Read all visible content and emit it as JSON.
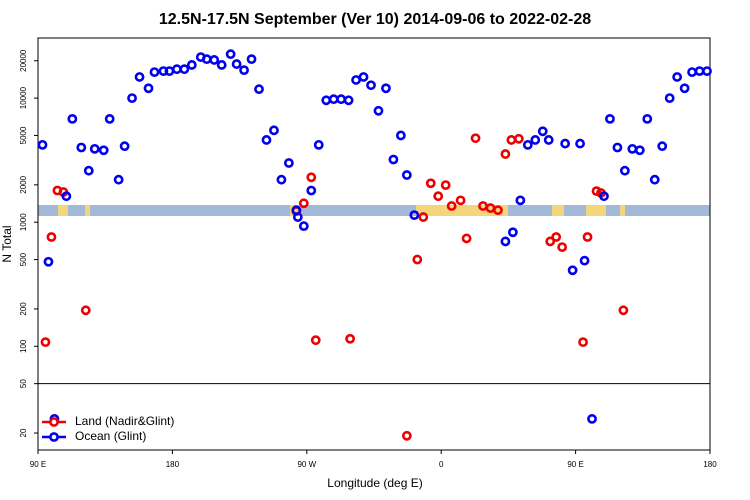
{
  "chart_data": {
    "type": "scatter",
    "log_y": true,
    "title": "12.5N-17.5N September (Ver 10)   2014-09-06 to 2022-02-28",
    "x_label": "Longitude (deg E)",
    "y_label": "N Total",
    "xlim": [
      90,
      540
    ],
    "xticks": [
      {
        "value": 90,
        "label": "90 E"
      },
      180,
      {
        "value": 270,
        "label": "90 W"
      },
      {
        "value": 360,
        "label": "0"
      },
      {
        "value": 450,
        "label": "90 E"
      },
      {
        "value": 540,
        "label": "180"
      }
    ],
    "ylim": [
      14.6,
      30500
    ],
    "yticks": [
      20,
      50,
      100,
      200,
      500,
      1000,
      2000,
      5000,
      10000,
      20000
    ],
    "break_line": 50,
    "legend": "bottom-left",
    "series": [
      {
        "name": "Land (Nadir&Glint)",
        "color": "#ee0000",
        "x": [
          95,
          99,
          103,
          107,
          122,
          263,
          268,
          273,
          276,
          299,
          337,
          344,
          348,
          353,
          358,
          363,
          367,
          373,
          377,
          383,
          388,
          393,
          398,
          403,
          407,
          412,
          433,
          437,
          441,
          455,
          458,
          464,
          467,
          482
        ],
        "values": [
          108,
          760,
          1800,
          1750,
          195,
          1230,
          1420,
          2300,
          112,
          115,
          19,
          500,
          1100,
          2060,
          1620,
          1990,
          1350,
          1500,
          740,
          4750,
          1350,
          1300,
          1250,
          3540,
          4600,
          4700,
          700,
          760,
          630,
          108,
          760,
          1780,
          1720,
          195
        ]
      },
      {
        "name": "Ocean (Glint)",
        "color": "#0000ee",
        "x": [
          93,
          97,
          101,
          109,
          113,
          119,
          124,
          128,
          134,
          138,
          144,
          148,
          153,
          158,
          164,
          168,
          174,
          178,
          183,
          188,
          193,
          199,
          203,
          208,
          213,
          219,
          223,
          228,
          233,
          238,
          243,
          248,
          253,
          258,
          263,
          264,
          268,
          273,
          278,
          283,
          288,
          293,
          298,
          303,
          308,
          313,
          318,
          323,
          328,
          333,
          337,
          342,
          403,
          408,
          413,
          418,
          423,
          428,
          432,
          443,
          448,
          453,
          456,
          461,
          469,
          473,
          478,
          483,
          488,
          493,
          498,
          503,
          508,
          513,
          518,
          523,
          528,
          533,
          538
        ],
        "values": [
          4200,
          480,
          26,
          1620,
          6800,
          4000,
          2600,
          3900,
          3800,
          6800,
          2200,
          4100,
          10000,
          14800,
          12000,
          16200,
          16500,
          16500,
          17100,
          17100,
          18500,
          21400,
          20600,
          20300,
          18500,
          22600,
          18800,
          16800,
          20600,
          11800,
          4600,
          5500,
          2200,
          3000,
          1250,
          1100,
          930,
          1800,
          4200,
          9600,
          9800,
          9800,
          9600,
          14000,
          14800,
          12700,
          7900,
          12000,
          3200,
          5000,
          2400,
          1140,
          700,
          830,
          1500,
          4200,
          4600,
          5400,
          4600,
          4300,
          410,
          4300,
          490,
          26,
          1620,
          6800,
          4000,
          2600,
          3900,
          3800,
          6800,
          2200,
          4100,
          10000,
          14800,
          12000,
          16200,
          16500,
          16500
        ]
      }
    ]
  }
}
